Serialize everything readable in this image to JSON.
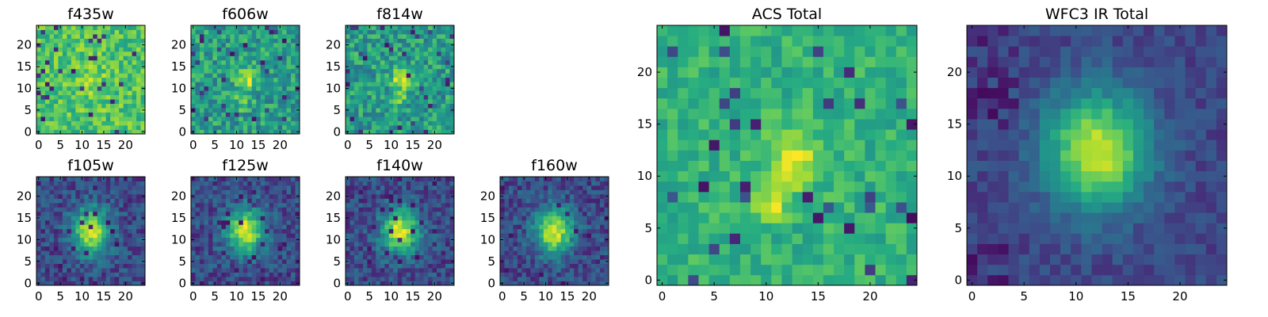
{
  "chart_data": [
    {
      "type": "heatmap",
      "title": "f435w",
      "colormap": "viridis",
      "profile": "faint",
      "grid_size": 25,
      "xlim": [
        -0.5,
        24.5
      ],
      "ylim": [
        -0.5,
        24.5
      ],
      "xticks": [
        0,
        5,
        10,
        15,
        20
      ],
      "yticks": [
        0,
        5,
        10,
        15,
        20
      ],
      "xticklabels": [
        "0",
        "5",
        "10",
        "15",
        "20"
      ],
      "yticklabels": [
        "0",
        "5",
        "10",
        "15",
        "20"
      ]
    },
    {
      "type": "heatmap",
      "title": "f606w",
      "colormap": "viridis",
      "profile": "compact",
      "grid_size": 25,
      "xlim": [
        -0.5,
        24.5
      ],
      "ylim": [
        -0.5,
        24.5
      ],
      "xticks": [
        0,
        5,
        10,
        15,
        20
      ],
      "yticks": [
        0,
        5,
        10,
        15,
        20
      ],
      "xticklabels": [
        "0",
        "5",
        "10",
        "15",
        "20"
      ],
      "yticklabels": [
        "0",
        "5",
        "10",
        "15",
        "20"
      ]
    },
    {
      "type": "heatmap",
      "title": "f814w",
      "colormap": "viridis",
      "profile": "compact",
      "grid_size": 25,
      "xlim": [
        -0.5,
        24.5
      ],
      "ylim": [
        -0.5,
        24.5
      ],
      "xticks": [
        0,
        5,
        10,
        15,
        20
      ],
      "yticks": [
        0,
        5,
        10,
        15,
        20
      ],
      "xticklabels": [
        "0",
        "5",
        "10",
        "15",
        "20"
      ],
      "yticklabels": [
        "0",
        "5",
        "10",
        "15",
        "20"
      ]
    },
    {
      "type": "heatmap",
      "title": "f105w",
      "colormap": "viridis",
      "profile": "extended",
      "grid_size": 25,
      "xlim": [
        -0.5,
        24.5
      ],
      "ylim": [
        -0.5,
        24.5
      ],
      "xticks": [
        0,
        5,
        10,
        15,
        20
      ],
      "yticks": [
        0,
        5,
        10,
        15,
        20
      ],
      "xticklabels": [
        "0",
        "5",
        "10",
        "15",
        "20"
      ],
      "yticklabels": [
        "0",
        "5",
        "10",
        "15",
        "20"
      ]
    },
    {
      "type": "heatmap",
      "title": "f125w",
      "colormap": "viridis",
      "profile": "extended",
      "grid_size": 25,
      "xlim": [
        -0.5,
        24.5
      ],
      "ylim": [
        -0.5,
        24.5
      ],
      "xticks": [
        0,
        5,
        10,
        15,
        20
      ],
      "yticks": [
        0,
        5,
        10,
        15,
        20
      ],
      "xticklabels": [
        "0",
        "5",
        "10",
        "15",
        "20"
      ],
      "yticklabels": [
        "0",
        "5",
        "10",
        "15",
        "20"
      ]
    },
    {
      "type": "heatmap",
      "title": "f140w",
      "colormap": "viridis",
      "profile": "extended",
      "grid_size": 25,
      "xlim": [
        -0.5,
        24.5
      ],
      "ylim": [
        -0.5,
        24.5
      ],
      "xticks": [
        0,
        5,
        10,
        15,
        20
      ],
      "yticks": [
        0,
        5,
        10,
        15,
        20
      ],
      "xticklabels": [
        "0",
        "5",
        "10",
        "15",
        "20"
      ],
      "yticklabels": [
        "0",
        "5",
        "10",
        "15",
        "20"
      ]
    },
    {
      "type": "heatmap",
      "title": "f160w",
      "colormap": "viridis",
      "profile": "extended",
      "grid_size": 25,
      "xlim": [
        -0.5,
        24.5
      ],
      "ylim": [
        -0.5,
        24.5
      ],
      "xticks": [
        0,
        5,
        10,
        15,
        20
      ],
      "yticks": [
        0,
        5,
        10,
        15,
        20
      ],
      "xticklabels": [
        "0",
        "5",
        "10",
        "15",
        "20"
      ],
      "yticklabels": [
        "0",
        "5",
        "10",
        "15",
        "20"
      ]
    },
    {
      "type": "heatmap",
      "title": "ACS Total",
      "colormap": "viridis",
      "profile": "acs",
      "grid_size": 25,
      "xlim": [
        -0.5,
        24.5
      ],
      "ylim": [
        -0.5,
        24.5
      ],
      "xticks": [
        0,
        5,
        10,
        15,
        20
      ],
      "yticks": [
        0,
        5,
        10,
        15,
        20
      ],
      "xticklabels": [
        "0",
        "5",
        "10",
        "15",
        "20"
      ],
      "yticklabels": [
        "0",
        "5",
        "10",
        "15",
        "20"
      ]
    },
    {
      "type": "heatmap",
      "title": "WFC3 IR Total",
      "colormap": "viridis",
      "profile": "ir",
      "grid_size": 25,
      "xlim": [
        -0.5,
        24.5
      ],
      "ylim": [
        -0.5,
        24.5
      ],
      "xticks": [
        0,
        5,
        10,
        15,
        20
      ],
      "yticks": [
        0,
        5,
        10,
        15,
        20
      ],
      "xticklabels": [
        "0",
        "5",
        "10",
        "15",
        "20"
      ],
      "yticklabels": [
        "0",
        "5",
        "10",
        "15",
        "20"
      ]
    }
  ]
}
